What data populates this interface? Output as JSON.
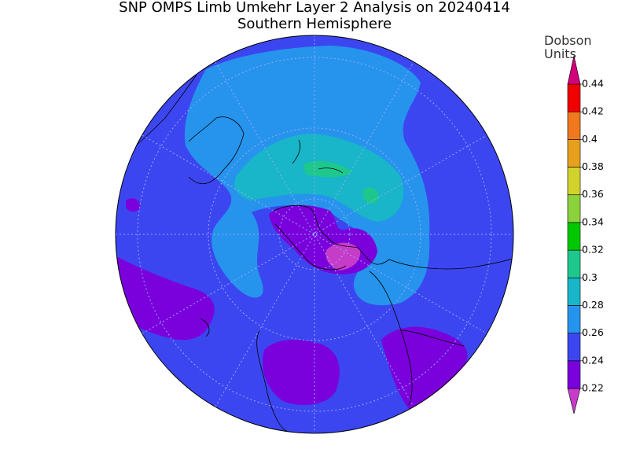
{
  "title": "SNP OMPS Limb Umkehr Layer 2 Analysis on 20240414",
  "subtitle": "Southern Hemisphere",
  "colorbar": {
    "label_lines": [
      "Dobson",
      "Units"
    ],
    "ticks": [
      0.22,
      0.24,
      0.26,
      0.28,
      0.3,
      0.32,
      0.34,
      0.36,
      0.38,
      0.4,
      0.42,
      0.44
    ],
    "colors": [
      "#c63cc8",
      "#7a00dc",
      "#3c46f0",
      "#2694ec",
      "#18b6c8",
      "#1ec88c",
      "#00c800",
      "#8cd23c",
      "#d2d22d",
      "#e6a01e",
      "#f0781e",
      "#f00000",
      "#d2007a"
    ]
  }
}
